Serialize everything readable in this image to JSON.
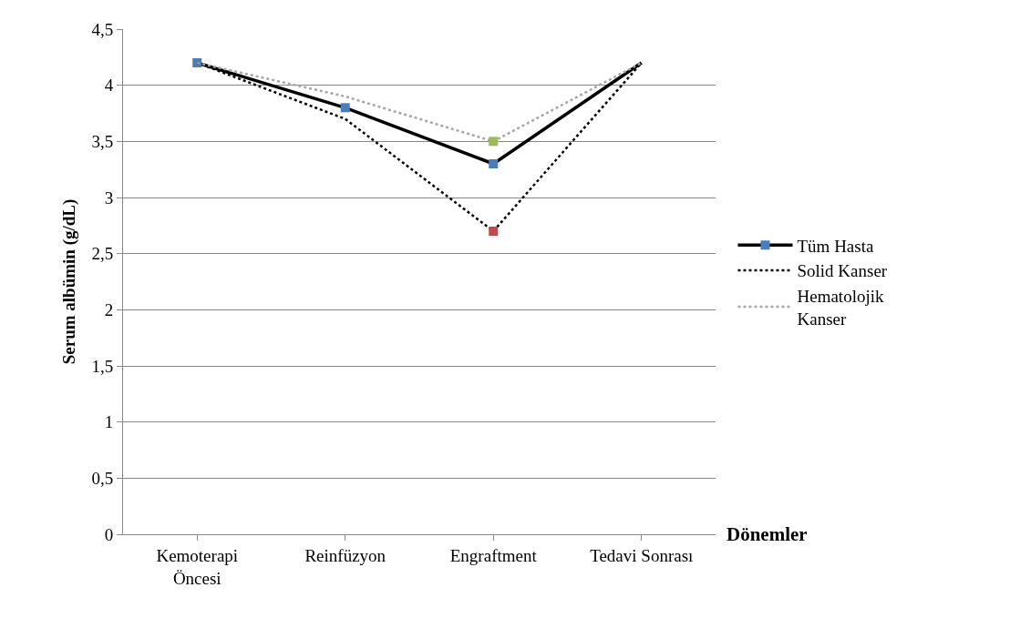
{
  "chart_data": {
    "type": "line",
    "ylabel": "Serum albümin (g/dL)",
    "xlabel": "Dönemler",
    "categories": [
      "Kemoterapi Öncesi",
      "Reinfüzyon",
      "Engraftment",
      "Tedavi Sonrası"
    ],
    "series": [
      {
        "name": "Tüm Hasta",
        "color": "#000000",
        "line_style": "solid",
        "marker": "square",
        "values": [
          4.2,
          3.8,
          3.3,
          4.2
        ],
        "colors": [
          "#4a7ebb",
          "#4a7ebb",
          "#4a7ebb",
          null
        ]
      },
      {
        "name": "Solid Kanser",
        "color": "#000000",
        "line_style": "dotted",
        "marker": "none",
        "values": [
          4.2,
          3.7,
          2.7,
          4.2
        ]
      },
      {
        "name": "Hematolojik Kanser",
        "color": "#a6a6a6",
        "line_style": "dotted",
        "marker": "none",
        "values": [
          4.2,
          3.9,
          3.5,
          4.2
        ]
      },
      {
        "type": "scatter",
        "color": "#be4b48",
        "marker": "square",
        "values": [
          null,
          null,
          2.7,
          null
        ]
      },
      {
        "type": "scatter",
        "color": "#9bbb59",
        "marker": "square",
        "values": [
          null,
          null,
          3.5,
          null
        ]
      }
    ],
    "ylim": [
      0,
      4.5
    ],
    "yticks": [
      {
        "value": 0,
        "label": "0"
      },
      {
        "value": 0.5,
        "label": "0,5"
      },
      {
        "value": 1,
        "label": "1"
      },
      {
        "value": 1.5,
        "label": "1,5"
      },
      {
        "value": 2,
        "label": "2"
      },
      {
        "value": 2.5,
        "label": "2,5"
      },
      {
        "value": 3,
        "label": "3"
      },
      {
        "value": 3.5,
        "label": "3,5"
      },
      {
        "value": 4,
        "label": "4"
      },
      {
        "value": 4.5,
        "label": "4,5"
      }
    ],
    "grid": "y",
    "legend": "right"
  }
}
